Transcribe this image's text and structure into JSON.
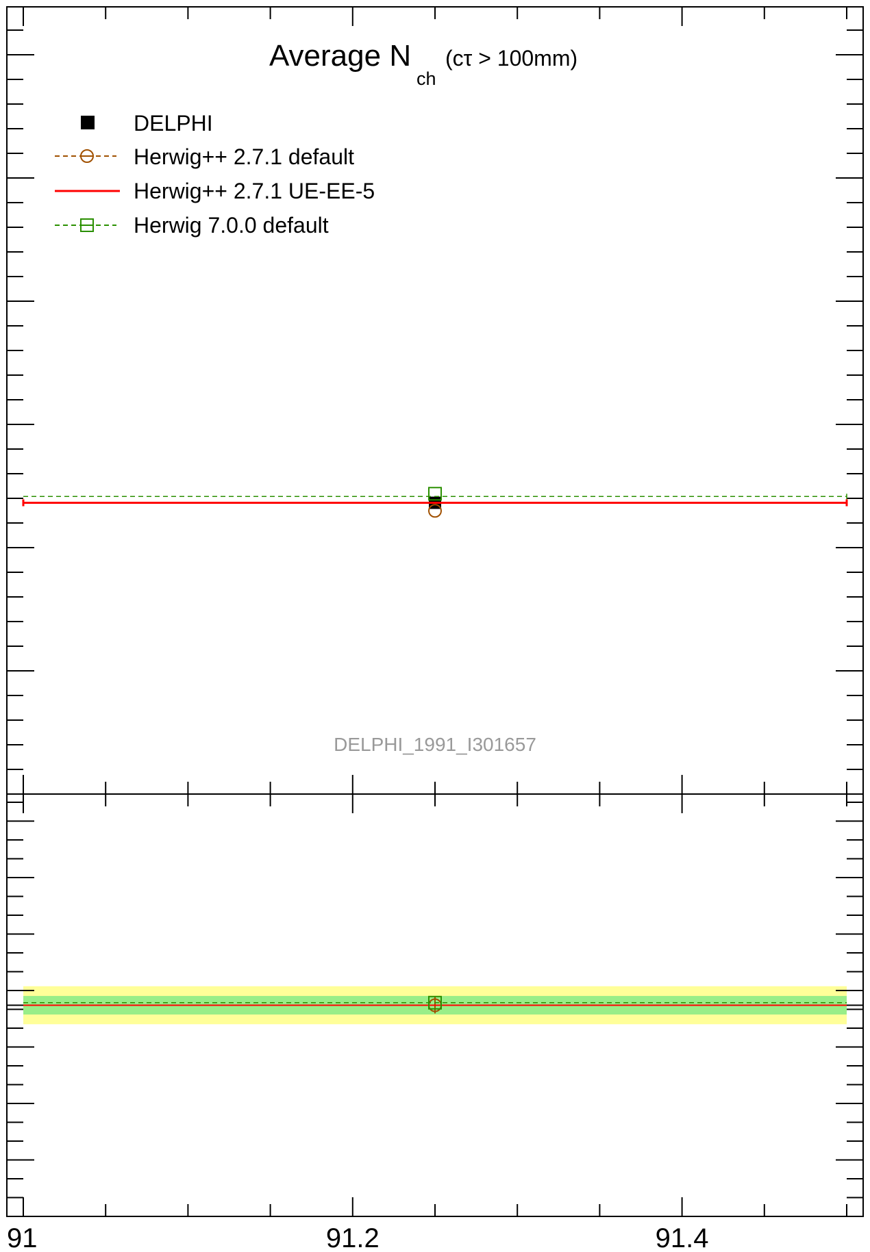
{
  "chart_data": [
    {
      "type": "line",
      "title_main": "Average N",
      "title_subscript": "ch",
      "title_suffix": "(cτ > 100mm)",
      "watermark": "DELPHI_1991_I301657",
      "xlim": [
        91,
        91.5
      ],
      "ylim": [
        0,
        1
      ],
      "grid": false,
      "legend_position": "top-left",
      "legend": [
        {
          "label": "DELPHI",
          "marker": "filled-square",
          "color": "#000000",
          "line": "none"
        },
        {
          "label": "Herwig++ 2.7.1 default",
          "marker": "open-circle",
          "color": "#a05000",
          "line": "dashed"
        },
        {
          "label": "Herwig++ 2.7.1 UE-EE-5",
          "marker": "none",
          "color": "#ff0000",
          "line": "solid"
        },
        {
          "label": "Herwig 7.0.0 default",
          "marker": "open-square",
          "color": "#2a8f00",
          "line": "dashed"
        }
      ],
      "series": [
        {
          "name": "DELPHI",
          "x": [
            91.25
          ],
          "y": [
            0.37
          ],
          "color": "#000000"
        },
        {
          "name": "Herwig++ 2.7.1 default",
          "x": [
            91.25
          ],
          "y": [
            0.365
          ],
          "x_range": [
            91,
            91.5
          ],
          "color": "#a05000"
        },
        {
          "name": "Herwig++ 2.7.1 UE-EE-5",
          "x": [
            91.25
          ],
          "y": [
            0.37
          ],
          "x_range": [
            91,
            91.5
          ],
          "color": "#ff0000"
        },
        {
          "name": "Herwig 7.0.0 default",
          "x": [
            91.25
          ],
          "y": [
            0.378
          ],
          "x_range": [
            91,
            91.5
          ],
          "color": "#2a8f00"
        }
      ]
    },
    {
      "type": "line",
      "subtype": "ratio",
      "xlim": [
        91,
        91.5
      ],
      "ylim": [
        0,
        1
      ],
      "x_ticks": [
        "91",
        "91.2",
        "91.4"
      ],
      "x_tick_values": [
        91,
        91.2,
        91.4
      ],
      "reference_line": 0.5,
      "bands": [
        {
          "name": "outer",
          "color": "#ffff99",
          "range": [
            0.455,
            0.545
          ]
        },
        {
          "name": "inner",
          "color": "#99ee88",
          "range": [
            0.478,
            0.522
          ]
        }
      ],
      "series": [
        {
          "name": "Herwig++ 2.7.1 default",
          "x": [
            91.25
          ],
          "y": [
            0.5
          ],
          "color": "#a05000"
        },
        {
          "name": "Herwig++ 2.7.1 UE-EE-5",
          "x": [
            91.25
          ],
          "y": [
            0.5
          ],
          "color": "#ff0000"
        },
        {
          "name": "Herwig 7.0.0 default",
          "x": [
            91.25
          ],
          "y": [
            0.506
          ],
          "color": "#2a8f00"
        }
      ]
    }
  ]
}
